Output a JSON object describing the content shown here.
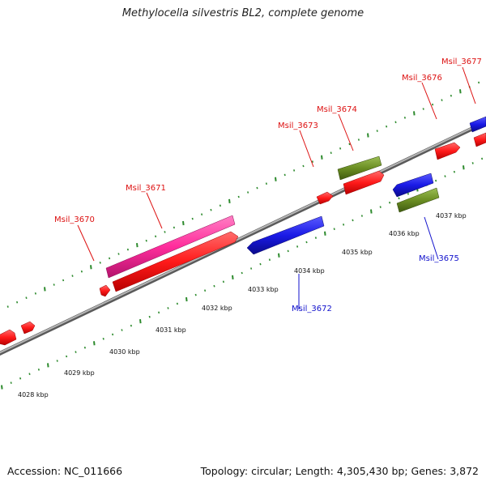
{
  "title": "Methylocella silvestris BL2, complete genome",
  "footer": {
    "accession": "Accession: NC_011666",
    "summary": "Topology: circular; Length: 4,305,430 bp; Genes: 3,872"
  },
  "colors": {
    "backbone": "#8a8a8a",
    "tick": "#2e8b2e",
    "forward_gene": "#ff2020",
    "reverse_gene": "#1a1ae6",
    "pink_gene": "#ff2d9c",
    "olive_gene": "#6b8e23",
    "forward_label": "#dd1111",
    "reverse_label": "#1111cc"
  },
  "kbp_labels": [
    "4028 kbp",
    "4029 kbp",
    "4030 kbp",
    "4031 kbp",
    "4032 kbp",
    "4033 kbp",
    "4034 kbp",
    "4035 kbp",
    "4036 kbp",
    "4037 kbp"
  ],
  "gene_labels": [
    {
      "name": "Msil_3670",
      "strand": "forward"
    },
    {
      "name": "Msil_3671",
      "strand": "forward"
    },
    {
      "name": "Msil_3672",
      "strand": "reverse"
    },
    {
      "name": "Msil_3673",
      "strand": "forward"
    },
    {
      "name": "Msil_3674",
      "strand": "forward"
    },
    {
      "name": "Msil_3675",
      "strand": "reverse"
    },
    {
      "name": "Msil_3676",
      "strand": "forward"
    },
    {
      "name": "Msil_3677",
      "strand": "forward"
    }
  ]
}
